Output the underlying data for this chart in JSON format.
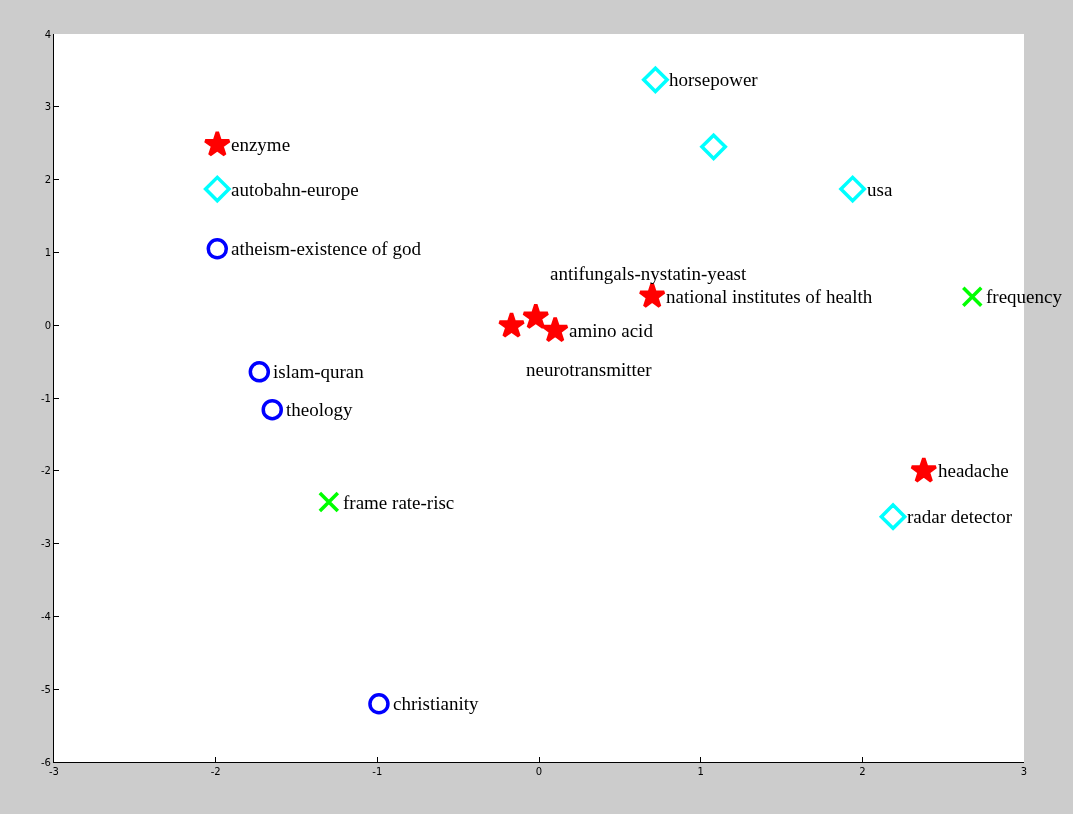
{
  "chart_data": {
    "type": "scatter",
    "xlim": [
      -3,
      3
    ],
    "ylim": [
      -6,
      4
    ],
    "xticks": [
      -3,
      -2,
      -1,
      0,
      1,
      2,
      3
    ],
    "yticks": [
      -6,
      -5,
      -4,
      -3,
      -2,
      -1,
      0,
      1,
      2,
      3,
      4
    ],
    "series": [
      {
        "color": "#ff0000",
        "marker": "star",
        "x": [
          -1.99,
          0.7,
          -0.17,
          -0.02,
          0.1,
          2.38
        ],
        "values": [
          2.48,
          0.4,
          -0.01,
          0.11,
          -0.07,
          -2.0
        ]
      },
      {
        "color": "#00ffff",
        "marker": "diamond",
        "x": [
          -1.99,
          0.72,
          1.08,
          1.94,
          2.19
        ],
        "values": [
          1.87,
          3.37,
          2.45,
          1.87,
          -2.63
        ]
      },
      {
        "color": "#0000ff",
        "marker": "circle",
        "x": [
          -1.99,
          -1.73,
          -1.65,
          -0.99
        ],
        "values": [
          1.05,
          -0.64,
          -1.16,
          -5.2
        ]
      },
      {
        "color": "#00ff00",
        "marker": "cross",
        "x": [
          2.68,
          -1.3
        ],
        "values": [
          0.39,
          -2.43
        ]
      }
    ],
    "annotations": [
      {
        "text": "enzyme",
        "x": -1.99,
        "y": 2.48
      },
      {
        "text": "national institutes of health",
        "x": 0.7,
        "y": 0.4
      },
      {
        "text": "neurotransmitter",
        "x": -0.17,
        "y": -0.01
      },
      {
        "text": "antifungals-nystatin-yeast",
        "x": -0.02,
        "y": 0.11
      },
      {
        "text": "amino acid",
        "x": 0.1,
        "y": -0.07
      },
      {
        "text": "headache",
        "x": 2.38,
        "y": -2.0
      },
      {
        "text": "autobahn-europe",
        "x": -1.99,
        "y": 1.87
      },
      {
        "text": "horsepower",
        "x": 0.72,
        "y": 3.37
      },
      {
        "text": "usa",
        "x": 1.94,
        "y": 1.87
      },
      {
        "text": "radar detector",
        "x": 2.19,
        "y": -2.63
      },
      {
        "text": "atheism-existence of god",
        "x": -1.99,
        "y": 1.05
      },
      {
        "text": "islam-quran",
        "x": -1.73,
        "y": -0.64
      },
      {
        "text": "theology",
        "x": -1.65,
        "y": -1.16
      },
      {
        "text": "christianity",
        "x": -0.99,
        "y": -5.2
      },
      {
        "text": "frequency",
        "x": 2.68,
        "y": 0.39
      },
      {
        "text": "frame rate-risc",
        "x": -1.3,
        "y": -2.43
      }
    ]
  }
}
